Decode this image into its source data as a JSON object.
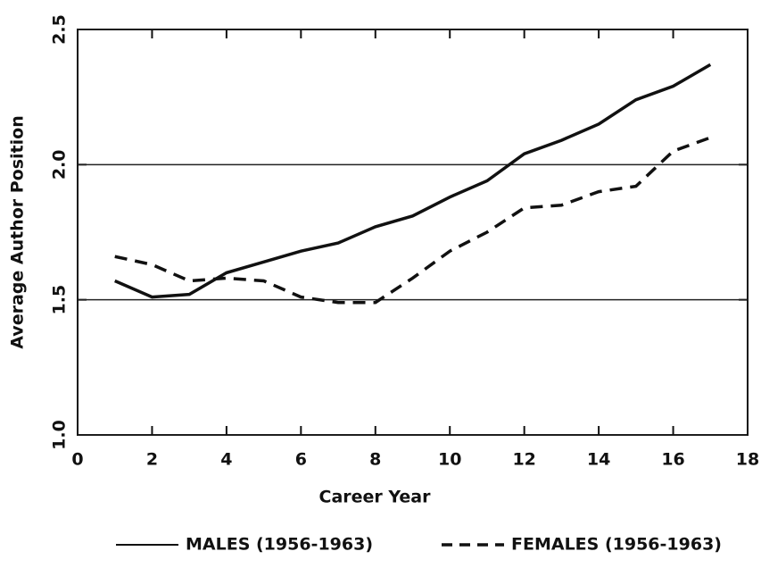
{
  "chart_data": {
    "type": "line",
    "x_label": "Career Year",
    "y_label": "Average Author Position",
    "x": [
      1,
      2,
      3,
      4,
      5,
      6,
      7,
      8,
      9,
      10,
      11,
      12,
      13,
      14,
      15,
      16,
      17
    ],
    "series": [
      {
        "name": "MALES (1956-1963)",
        "color": "#111111",
        "dash": "solid",
        "values": [
          1.57,
          1.51,
          1.52,
          1.6,
          1.64,
          1.68,
          1.71,
          1.77,
          1.81,
          1.88,
          1.94,
          2.04,
          2.09,
          2.15,
          2.24,
          2.29,
          2.37
        ]
      },
      {
        "name": "FEMALES (1956-1963)",
        "color": "#111111",
        "dash": "dashed",
        "values": [
          1.66,
          1.63,
          1.57,
          1.58,
          1.57,
          1.51,
          1.49,
          1.49,
          1.58,
          1.68,
          1.75,
          1.84,
          1.85,
          1.9,
          1.92,
          2.05,
          2.1
        ]
      }
    ],
    "xlim": [
      0,
      18
    ],
    "xticks": [
      0,
      2,
      4,
      6,
      8,
      10,
      12,
      14,
      16,
      18
    ],
    "ylim": [
      1.0,
      2.5
    ],
    "yticks": [
      {
        "value": 1.0,
        "label": "1.0"
      },
      1.5,
      {
        "value": 2.0,
        "label": "2.0"
      },
      2.5
    ],
    "grid": true,
    "legend": "bottom"
  }
}
